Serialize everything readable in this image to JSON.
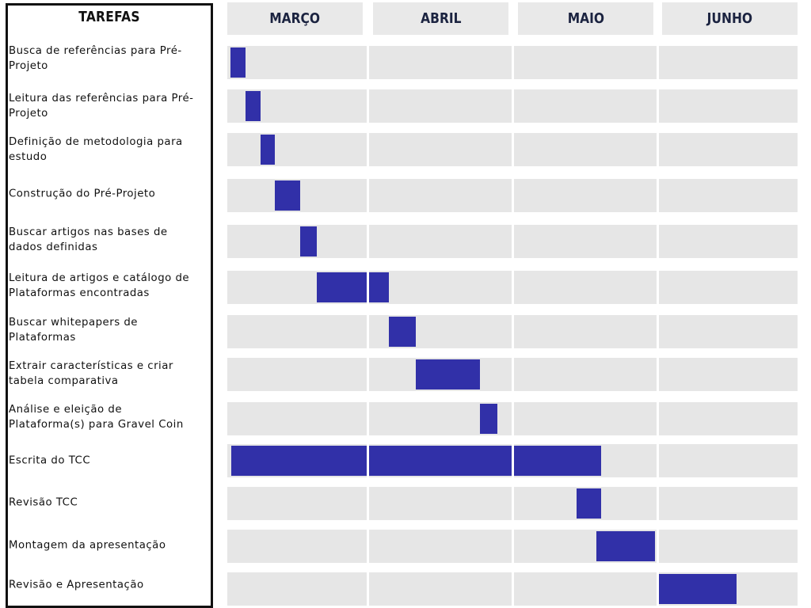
{
  "tasks_header": "TAREFAS",
  "colors": {
    "bar": "#3130a8",
    "cell": "#e6e6e6",
    "header_bg": "#e9e9e9",
    "header_text": "#1b2340"
  },
  "chart_data": {
    "type": "gantt",
    "months": [
      "MARÇO",
      "ABRIL",
      "MAIO",
      "JUNHO"
    ],
    "unit": "month index (0 = start of MARÇO, 4 = end of JUNHO)",
    "tasks": [
      {
        "label": "Busca de referências para Pré-Projeto",
        "start": 0.02,
        "end": 0.13
      },
      {
        "label": "Leitura das referências para Pré-Projeto",
        "start": 0.13,
        "end": 0.24
      },
      {
        "label": "Definição de metodologia para estudo",
        "start": 0.24,
        "end": 0.34
      },
      {
        "label": "Construção do Pré-Projeto",
        "start": 0.34,
        "end": 0.52
      },
      {
        "label": "Buscar artigos nas bases de dados definidas",
        "start": 0.52,
        "end": 0.64
      },
      {
        "label": "Leitura de artigos e catálogo de Plataformas encontradas",
        "start": 0.64,
        "end": 1.14
      },
      {
        "label": "Buscar whitepapers de Plataformas",
        "start": 1.14,
        "end": 1.33
      },
      {
        "label": "Extrair características e criar tabela comparativa",
        "start": 1.33,
        "end": 1.78
      },
      {
        "label": "Análise e eleição de Plataforma(s) para Gravel Coin",
        "start": 1.78,
        "end": 1.9
      },
      {
        "label": "Escrita do TCC",
        "start": 0.03,
        "end": 2.61
      },
      {
        "label": "Revisão TCC",
        "start": 2.44,
        "end": 2.61
      },
      {
        "label": "Montagem da apresentação",
        "start": 2.58,
        "end": 2.99
      },
      {
        "label": "Revisão e Apresentação",
        "start": 3.0,
        "end": 3.56
      }
    ]
  }
}
